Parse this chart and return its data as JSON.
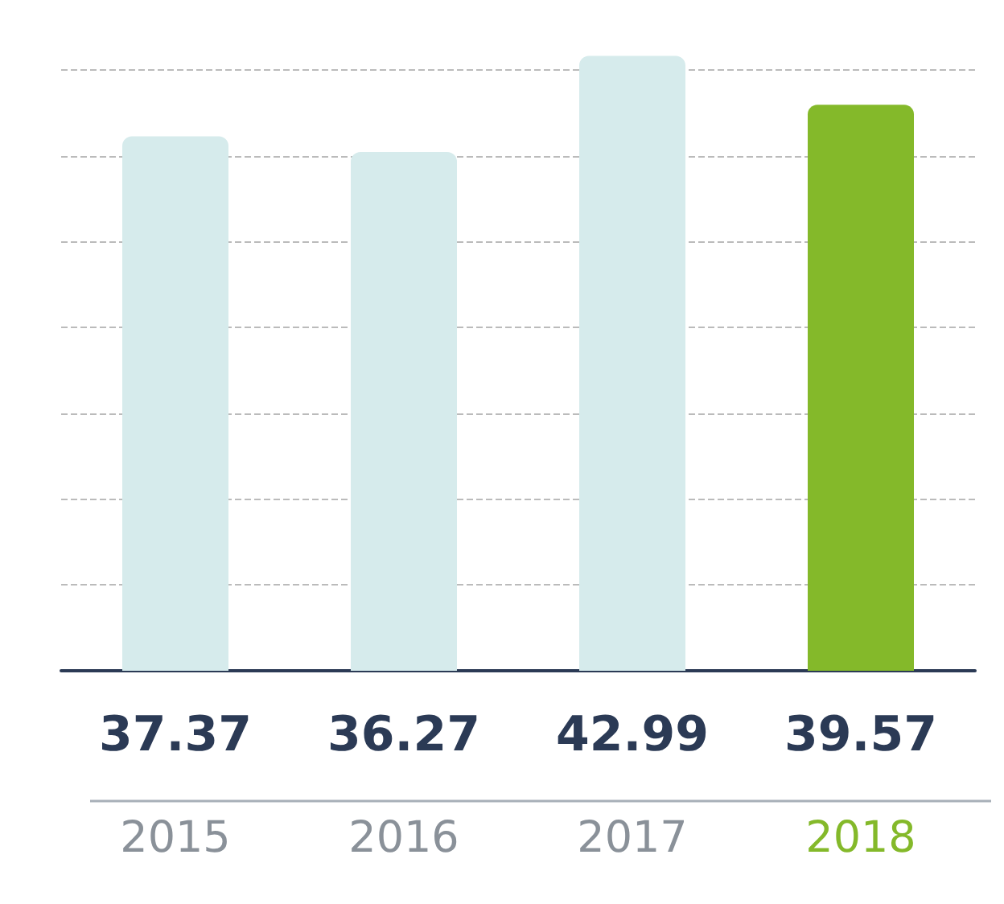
{
  "chart_data": {
    "type": "bar",
    "categories": [
      "2015",
      "2016",
      "2017",
      "2018"
    ],
    "values": [
      37.37,
      36.27,
      42.99,
      39.57
    ],
    "colors": [
      "#d6ebec",
      "#d6ebec",
      "#d6ebec",
      "#84b92a"
    ],
    "yticks": [
      {
        "value": 6,
        "label": null
      },
      {
        "value": 12,
        "label": null
      },
      {
        "value": 18,
        "label": null
      },
      {
        "value": 24,
        "label": null
      },
      {
        "value": 30,
        "label": null
      },
      {
        "value": 36,
        "label": null
      },
      {
        "value": 42,
        "label": null
      }
    ],
    "grid": "y",
    "data_labels": true
  }
}
